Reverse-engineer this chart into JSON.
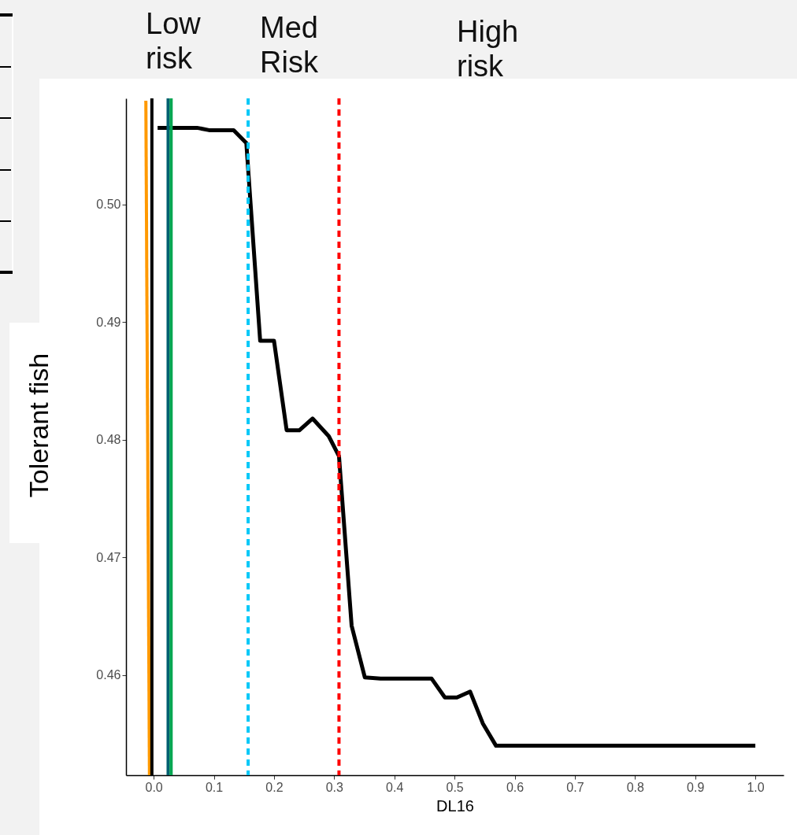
{
  "chart_data": {
    "type": "line",
    "xlabel": "DL16",
    "ylabel": "Tolerant fish",
    "annotations": [
      "Low risk",
      "Med Risk",
      "High risk"
    ],
    "series": [
      {
        "color": "#000000",
        "x": [
          0.0065,
          0.072,
          0.092,
          0.133,
          0.154,
          0.177,
          0.2,
          0.221,
          0.242,
          0.264,
          0.291,
          0.308,
          0.329,
          0.351,
          0.377,
          0.462,
          0.484,
          0.504,
          0.526,
          0.547,
          0.569,
          1.0
        ],
        "values": [
          0.5065,
          0.5065,
          0.5063,
          0.5063,
          0.5052,
          0.4884,
          0.4884,
          0.4808,
          0.4808,
          0.4818,
          0.4803,
          0.4786,
          0.4642,
          0.4598,
          0.4597,
          0.4597,
          0.4581,
          0.4581,
          0.4586,
          0.4559,
          0.454,
          0.454
        ]
      },
      {
        "color": "#ff9900",
        "x": [
          -0.013,
          -0.007
        ],
        "values": [
          0.5088,
          0.4515
        ]
      }
    ],
    "ref_lines": [
      {
        "axis": "x",
        "value": -0.003,
        "color": "#000000",
        "line_style": "solid"
      },
      {
        "axis": "x",
        "value": 0.024,
        "color": "#006070",
        "line_style": "solid"
      },
      {
        "axis": "x",
        "value": 0.029,
        "color": "#00a651",
        "line_style": "solid"
      },
      {
        "axis": "x",
        "value": 0.157,
        "color": "#00c8f8",
        "line_style": "dashed"
      },
      {
        "axis": "x",
        "value": 0.308,
        "color": "#ff0000",
        "line_style": "dashed"
      }
    ],
    "xlim": [
      -0.046,
      1.047
    ],
    "ylim": [
      0.4515,
      0.509
    ],
    "xticks": [
      {
        "value": 0,
        "label": "0.0"
      },
      0.1,
      0.2,
      0.3,
      0.4,
      0.5,
      0.6,
      0.7,
      0.8,
      0.9,
      {
        "value": 1,
        "label": "1.0"
      }
    ],
    "yticks": [
      0.46,
      0.47,
      0.48,
      0.49,
      {
        "value": 0.5,
        "label": "0.50"
      }
    ],
    "grid": false,
    "marker": "none",
    "line_style": "solid"
  }
}
